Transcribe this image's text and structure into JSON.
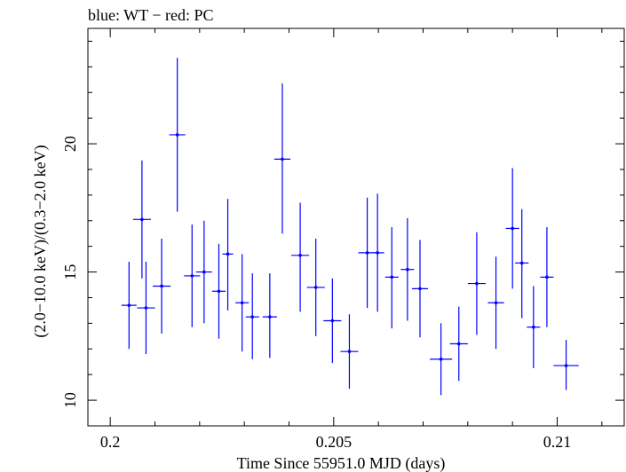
{
  "chart_data": {
    "type": "scatter",
    "title": "blue: WT − red: PC",
    "xlabel": "Time Since 55951.0 MJD (days)",
    "ylabel": "(2.0−10.0 keV)/(0.3−2.0 keV)",
    "xlim": [
      0.1995,
      0.2115
    ],
    "ylim": [
      9.0,
      24.5
    ],
    "x_ticks": [
      {
        "value": 0.2,
        "label": "0.2"
      },
      {
        "value": 0.205,
        "label": "0.205"
      },
      {
        "value": 0.21,
        "label": "0.21"
      }
    ],
    "y_ticks": [
      {
        "value": 10,
        "label": "10"
      },
      {
        "value": 15,
        "label": "15"
      },
      {
        "value": 20,
        "label": "20"
      }
    ],
    "x_minor_step": 0.001,
    "y_minor_step": 1,
    "grid": false,
    "series": [
      {
        "color": "#0000ff",
        "points": [
          {
            "x": 0.20071,
            "xerr": 0.0002,
            "y": 17.05,
            "ylo": 14.75,
            "yhi": 19.35
          },
          {
            "x": 0.20042,
            "xerr": 0.00017,
            "y": 13.7,
            "ylo": 12.0,
            "yhi": 15.4
          },
          {
            "x": 0.2008,
            "xerr": 0.0002,
            "y": 13.6,
            "ylo": 11.8,
            "yhi": 15.4
          },
          {
            "x": 0.20115,
            "xerr": 0.0002,
            "y": 14.45,
            "ylo": 12.6,
            "yhi": 16.3
          },
          {
            "x": 0.2015,
            "xerr": 0.00018,
            "y": 20.35,
            "ylo": 17.35,
            "yhi": 23.35
          },
          {
            "x": 0.20183,
            "xerr": 0.00018,
            "y": 14.85,
            "ylo": 12.85,
            "yhi": 16.85
          },
          {
            "x": 0.2021,
            "xerr": 0.00018,
            "y": 15.0,
            "ylo": 13.0,
            "yhi": 17.0
          },
          {
            "x": 0.20243,
            "xerr": 0.00015,
            "y": 14.25,
            "ylo": 12.4,
            "yhi": 16.1
          },
          {
            "x": 0.20263,
            "xerr": 0.00012,
            "y": 15.7,
            "ylo": 13.5,
            "yhi": 17.85
          },
          {
            "x": 0.20295,
            "xerr": 0.00015,
            "y": 13.8,
            "ylo": 11.9,
            "yhi": 15.7
          },
          {
            "x": 0.20318,
            "xerr": 0.00015,
            "y": 13.25,
            "ylo": 11.6,
            "yhi": 14.95
          },
          {
            "x": 0.20357,
            "xerr": 0.00016,
            "y": 13.25,
            "ylo": 11.65,
            "yhi": 14.95
          },
          {
            "x": 0.20385,
            "xerr": 0.00018,
            "y": 19.4,
            "ylo": 16.5,
            "yhi": 22.35
          },
          {
            "x": 0.20425,
            "xerr": 0.0002,
            "y": 15.65,
            "ylo": 13.45,
            "yhi": 17.7
          },
          {
            "x": 0.2046,
            "xerr": 0.0002,
            "y": 14.4,
            "ylo": 12.5,
            "yhi": 16.3
          },
          {
            "x": 0.20497,
            "xerr": 0.0002,
            "y": 13.1,
            "ylo": 11.45,
            "yhi": 14.75
          },
          {
            "x": 0.20535,
            "xerr": 0.0002,
            "y": 11.9,
            "ylo": 10.45,
            "yhi": 13.35
          },
          {
            "x": 0.20575,
            "xerr": 0.0002,
            "y": 15.75,
            "ylo": 13.6,
            "yhi": 17.9
          },
          {
            "x": 0.20598,
            "xerr": 0.00015,
            "y": 15.75,
            "ylo": 13.45,
            "yhi": 18.05
          },
          {
            "x": 0.2063,
            "xerr": 0.00015,
            "y": 14.8,
            "ylo": 12.8,
            "yhi": 16.75
          },
          {
            "x": 0.20665,
            "xerr": 0.00015,
            "y": 15.1,
            "ylo": 13.1,
            "yhi": 17.1
          },
          {
            "x": 0.20693,
            "xerr": 0.00018,
            "y": 14.35,
            "ylo": 12.45,
            "yhi": 16.25
          },
          {
            "x": 0.2074,
            "xerr": 0.00025,
            "y": 11.6,
            "ylo": 10.2,
            "yhi": 13.0
          },
          {
            "x": 0.2078,
            "xerr": 0.0002,
            "y": 12.2,
            "ylo": 10.75,
            "yhi": 13.65
          },
          {
            "x": 0.2082,
            "xerr": 0.0002,
            "y": 14.55,
            "ylo": 12.55,
            "yhi": 16.55
          },
          {
            "x": 0.20863,
            "xerr": 0.00018,
            "y": 13.8,
            "ylo": 12.0,
            "yhi": 15.6
          },
          {
            "x": 0.209,
            "xerr": 0.00015,
            "y": 16.7,
            "ylo": 14.35,
            "yhi": 19.05
          },
          {
            "x": 0.20921,
            "xerr": 0.00015,
            "y": 15.35,
            "ylo": 13.2,
            "yhi": 17.45
          },
          {
            "x": 0.20947,
            "xerr": 0.00015,
            "y": 12.85,
            "ylo": 11.25,
            "yhi": 14.45
          },
          {
            "x": 0.20977,
            "xerr": 0.00015,
            "y": 14.8,
            "ylo": 12.85,
            "yhi": 16.75
          },
          {
            "x": 0.2102,
            "xerr": 0.00028,
            "y": 11.35,
            "ylo": 10.4,
            "yhi": 12.35
          }
        ]
      }
    ]
  }
}
